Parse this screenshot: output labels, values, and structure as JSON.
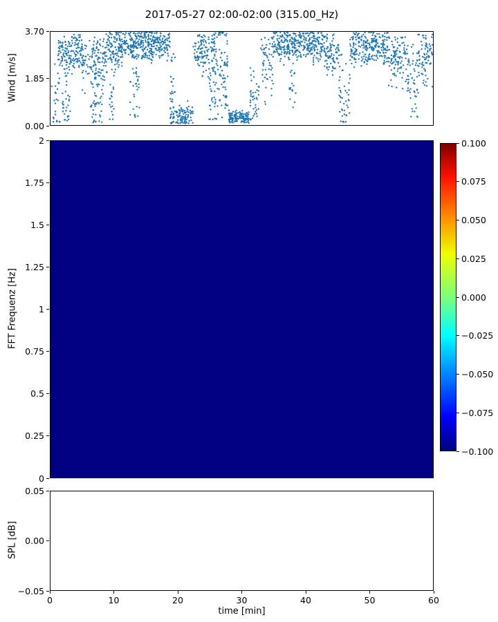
{
  "title": "2017-05-27 02:00-02:00 (315.00_Hz)",
  "colors": {
    "marker": "#1f77b4",
    "heatmap_fill": "#000080",
    "axis": "#000000",
    "background": "#ffffff"
  },
  "chart_data": [
    {
      "id": "wind",
      "type": "scatter",
      "ylabel": "Wind [m/s]",
      "ylim": [
        0,
        3.7
      ],
      "ytick_labels": [
        "3.70",
        "1.85",
        "0.00"
      ],
      "ytick_values": [
        3.7,
        1.85,
        0.0
      ],
      "xlim": [
        0,
        60
      ],
      "grid": false,
      "marker_color": "#1f77b4",
      "point_count_estimate": 2400,
      "segments": [
        {
          "t": [
            0.2,
            1.5
          ],
          "mean": 1.2,
          "sd": 0.9,
          "min": 0.1,
          "max": 2.8,
          "n": 25
        },
        {
          "t": [
            1.2,
            5.2
          ],
          "mean": 2.9,
          "sd": 0.35,
          "min": 1.8,
          "max": 3.65,
          "n": 160
        },
        {
          "t": [
            1.8,
            3.2
          ],
          "mean": 0.9,
          "sd": 0.5,
          "min": 0.15,
          "max": 2.0,
          "n": 30
        },
        {
          "t": [
            5.0,
            8.5
          ],
          "mean": 2.6,
          "sd": 0.5,
          "min": 1.2,
          "max": 3.5,
          "n": 110
        },
        {
          "t": [
            6.3,
            8.3
          ],
          "mean": 0.9,
          "sd": 0.6,
          "min": 0.1,
          "max": 2.2,
          "n": 45
        },
        {
          "t": [
            8.5,
            11.2
          ],
          "mean": 3.0,
          "sd": 0.45,
          "min": 1.2,
          "max": 3.7,
          "n": 120
        },
        {
          "t": [
            9.3,
            10.0
          ],
          "mean": 0.8,
          "sd": 0.5,
          "min": 0.2,
          "max": 1.8,
          "n": 18
        },
        {
          "t": [
            11.2,
            18.8
          ],
          "mean": 3.2,
          "sd": 0.3,
          "min": 2.0,
          "max": 3.7,
          "n": 330
        },
        {
          "t": [
            12.5,
            14.0
          ],
          "mean": 1.6,
          "sd": 0.8,
          "min": 0.3,
          "max": 3.0,
          "n": 35
        },
        {
          "t": [
            18.8,
            22.4
          ],
          "mean": 0.35,
          "sd": 0.25,
          "min": 0.05,
          "max": 1.2,
          "n": 110
        },
        {
          "t": [
            18.8,
            19.6
          ],
          "mean": 2.0,
          "sd": 0.8,
          "min": 0.5,
          "max": 3.2,
          "n": 20
        },
        {
          "t": [
            22.4,
            25.8
          ],
          "mean": 2.9,
          "sd": 0.4,
          "min": 1.5,
          "max": 3.6,
          "n": 120
        },
        {
          "t": [
            24.8,
            25.8
          ],
          "mean": 1.2,
          "sd": 0.7,
          "min": 0.2,
          "max": 2.5,
          "n": 25
        },
        {
          "t": [
            25.8,
            28.0
          ],
          "mean": 2.2,
          "sd": 1.1,
          "min": 0.2,
          "max": 3.7,
          "n": 90
        },
        {
          "t": [
            28.0,
            31.2
          ],
          "mean": 0.3,
          "sd": 0.12,
          "min": 0.08,
          "max": 0.8,
          "n": 130
        },
        {
          "t": [
            31.2,
            33.0
          ],
          "mean": 0.9,
          "sd": 0.6,
          "min": 0.2,
          "max": 2.5,
          "n": 40
        },
        {
          "t": [
            33.0,
            35.0
          ],
          "mean": 2.4,
          "sd": 0.8,
          "min": 0.5,
          "max": 3.5,
          "n": 60
        },
        {
          "t": [
            35.0,
            43.0
          ],
          "mean": 3.2,
          "sd": 0.3,
          "min": 2.0,
          "max": 3.7,
          "n": 340
        },
        {
          "t": [
            37.5,
            38.5
          ],
          "mean": 1.5,
          "sd": 0.7,
          "min": 0.4,
          "max": 2.6,
          "n": 18
        },
        {
          "t": [
            43.0,
            45.3
          ],
          "mean": 2.9,
          "sd": 0.4,
          "min": 1.5,
          "max": 3.6,
          "n": 80
        },
        {
          "t": [
            45.3,
            47.0
          ],
          "mean": 1.0,
          "sd": 0.7,
          "min": 0.1,
          "max": 2.8,
          "n": 45
        },
        {
          "t": [
            47.0,
            53.0
          ],
          "mean": 3.1,
          "sd": 0.35,
          "min": 1.8,
          "max": 3.7,
          "n": 240
        },
        {
          "t": [
            53.0,
            56.2
          ],
          "mean": 2.7,
          "sd": 0.5,
          "min": 1.0,
          "max": 3.5,
          "n": 110
        },
        {
          "t": [
            56.0,
            57.8
          ],
          "mean": 1.6,
          "sd": 0.9,
          "min": 0.3,
          "max": 3.2,
          "n": 45
        },
        {
          "t": [
            57.5,
            60.0
          ],
          "mean": 2.7,
          "sd": 0.6,
          "min": 1.0,
          "max": 3.6,
          "n": 80
        }
      ]
    },
    {
      "id": "spectrogram",
      "type": "heatmap",
      "ylabel": "FFT Frequenz [Hz]",
      "ylim": [
        0,
        2
      ],
      "ytick_labels": [
        "2",
        "1.75",
        "1.5",
        "1.25",
        "1",
        "0.75",
        "0.5",
        "0.25",
        "0"
      ],
      "ytick_values": [
        2,
        1.75,
        1.5,
        1.25,
        1,
        0.75,
        0.5,
        0.25,
        0
      ],
      "xlim": [
        0,
        60
      ],
      "uniform_value": -0.1,
      "fill_color": "#000080",
      "colorbar": {
        "min": -0.1,
        "max": 0.1,
        "colormap": "jet",
        "tick_labels": [
          "0.100",
          "0.075",
          "0.050",
          "0.025",
          "0.000",
          "−0.025",
          "−0.050",
          "−0.075",
          "−0.100"
        ],
        "tick_values": [
          0.1,
          0.075,
          0.05,
          0.025,
          0,
          -0.025,
          -0.05,
          -0.075,
          -0.1
        ],
        "gradient": [
          {
            "p": 0.0,
            "c": "#000080"
          },
          {
            "p": 0.11,
            "c": "#0000ff"
          },
          {
            "p": 0.34,
            "c": "#00dcff"
          },
          {
            "p": 0.375,
            "c": "#00ffff"
          },
          {
            "p": 0.5,
            "c": "#7bff7b"
          },
          {
            "p": 0.64,
            "c": "#eeff00"
          },
          {
            "p": 0.78,
            "c": "#ff7b00"
          },
          {
            "p": 0.89,
            "c": "#ff1200"
          },
          {
            "p": 1.0,
            "c": "#800000"
          }
        ]
      }
    },
    {
      "id": "spl",
      "type": "line",
      "ylabel": "SPL [dB]",
      "xlabel": "time [min]",
      "ylim": [
        -0.05,
        0.05
      ],
      "ytick_labels": [
        "0.05",
        "0.00",
        "−0.05"
      ],
      "ytick_values": [
        0.05,
        0,
        -0.05
      ],
      "xtick_labels": [
        "0",
        "10",
        "20",
        "30",
        "40",
        "50",
        "60"
      ],
      "xtick_values": [
        0,
        10,
        20,
        30,
        40,
        50,
        60
      ],
      "values": []
    }
  ]
}
